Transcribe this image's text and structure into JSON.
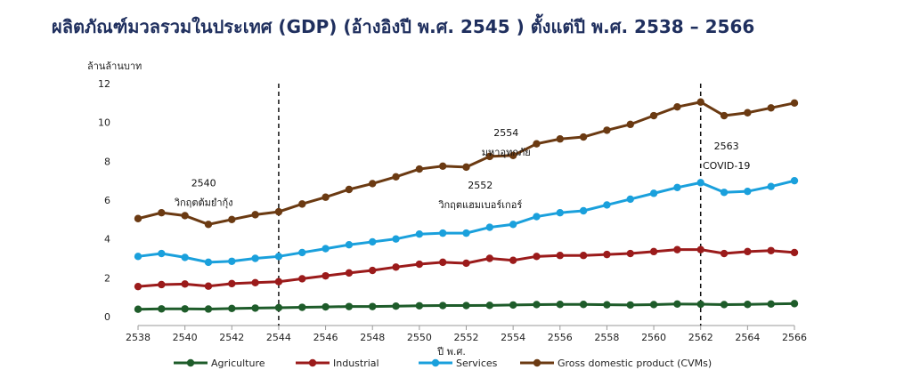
{
  "title": "ผลิตภัณฑ์มวลรวมในประเทศ (GDP) (อ้างอิงปี พ.ศ. 2545 ) ตั้งแต่ปี พ.ศ. 2538 – 2566",
  "chart_data": {
    "type": "line",
    "ylabel": "ล้านล้านบาท",
    "xlabel": "ปี พ.ศ.",
    "ylim": [
      0,
      12
    ],
    "yticks": [
      "0",
      "2",
      "4",
      "6",
      "8",
      "10",
      "12"
    ],
    "xlim": [
      2538,
      2566
    ],
    "xticks": [
      "2538",
      "2540",
      "2542",
      "2544",
      "2546",
      "2548",
      "2550",
      "2552",
      "2554",
      "2556",
      "2558",
      "2560",
      "2562",
      "2564",
      "2566"
    ],
    "x": [
      2538,
      2539,
      2540,
      2541,
      2542,
      2543,
      2544,
      2545,
      2546,
      2547,
      2548,
      2549,
      2550,
      2551,
      2552,
      2553,
      2554,
      2555,
      2556,
      2557,
      2558,
      2559,
      2560,
      2561,
      2562,
      2563,
      2564,
      2565,
      2566
    ],
    "series": [
      {
        "name": "Agriculture",
        "color": "#1e5c2a",
        "values": [
          0.38,
          0.4,
          0.4,
          0.39,
          0.42,
          0.44,
          0.46,
          0.48,
          0.5,
          0.52,
          0.52,
          0.54,
          0.56,
          0.57,
          0.57,
          0.58,
          0.6,
          0.62,
          0.63,
          0.63,
          0.61,
          0.6,
          0.62,
          0.65,
          0.64,
          0.62,
          0.63,
          0.65,
          0.67
        ]
      },
      {
        "name": "Industrial",
        "color": "#9b1b1b",
        "values": [
          1.55,
          1.65,
          1.68,
          1.57,
          1.7,
          1.75,
          1.8,
          1.95,
          2.1,
          2.25,
          2.38,
          2.55,
          2.7,
          2.8,
          2.75,
          3.0,
          2.9,
          3.1,
          3.15,
          3.15,
          3.2,
          3.25,
          3.35,
          3.45,
          3.45,
          3.25,
          3.35,
          3.4,
          3.3
        ]
      },
      {
        "name": "Services",
        "color": "#1aa0dc",
        "values": [
          3.1,
          3.25,
          3.05,
          2.8,
          2.85,
          3.0,
          3.1,
          3.3,
          3.5,
          3.7,
          3.85,
          4.0,
          4.25,
          4.3,
          4.3,
          4.6,
          4.75,
          5.15,
          5.35,
          5.45,
          5.75,
          6.05,
          6.35,
          6.65,
          6.9,
          6.4,
          6.45,
          6.7,
          7.0
        ]
      },
      {
        "name": "Gross domestic product (CVMs)",
        "color": "#6b3a12",
        "values": [
          5.05,
          5.35,
          5.2,
          4.75,
          5.0,
          5.25,
          5.4,
          5.8,
          6.15,
          6.55,
          6.85,
          7.2,
          7.6,
          7.75,
          7.7,
          8.25,
          8.3,
          8.9,
          9.15,
          9.25,
          9.6,
          9.9,
          10.35,
          10.8,
          11.05,
          10.35,
          10.5,
          10.75,
          11.0
        ]
      }
    ],
    "event_lines": [
      2544,
      2562
    ],
    "annotations": [
      {
        "year": "2540",
        "text": "วิกฤตต้มยำกุ้ง",
        "x": 2540.8,
        "y": 6.7
      },
      {
        "year": "2552",
        "text": "วิกฤตแฮมเบอร์เกอร์",
        "x": 2552.6,
        "y": 6.6
      },
      {
        "year": "2554",
        "text": "มหาอุทกภัย",
        "x": 2553.7,
        "y": 9.3
      },
      {
        "year": "2563",
        "text": "COVID-19",
        "x": 2563.1,
        "y": 8.6
      }
    ],
    "legend_position": "bottom"
  }
}
